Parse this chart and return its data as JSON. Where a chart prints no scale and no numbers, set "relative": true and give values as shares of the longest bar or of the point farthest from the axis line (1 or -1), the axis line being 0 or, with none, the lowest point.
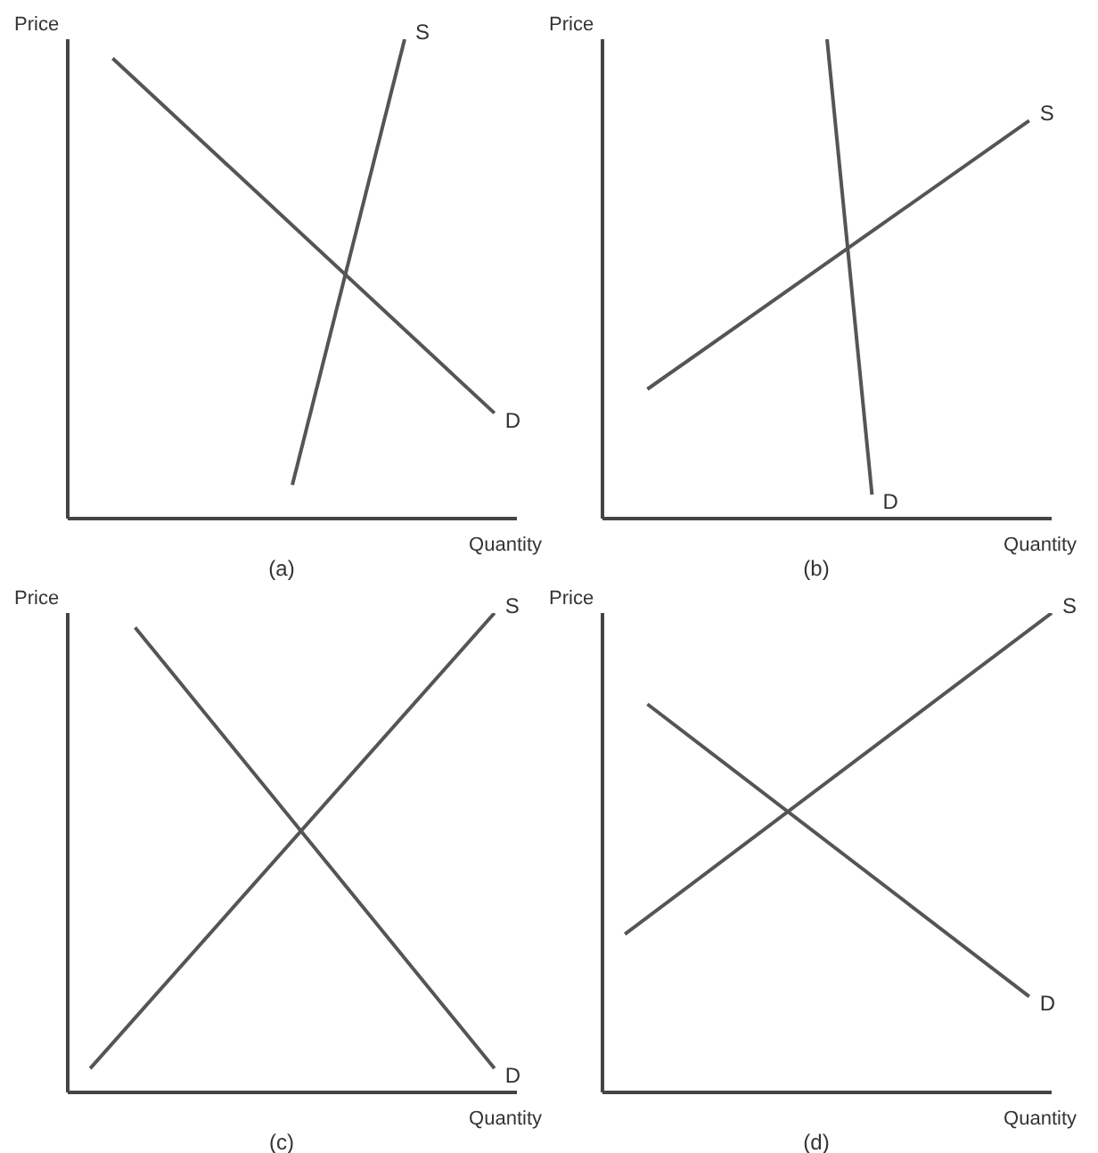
{
  "chart_data": [
    {
      "type": "line",
      "title": "(a)",
      "xlabel": "Quantity",
      "ylabel": "Price",
      "relative": true,
      "legend": false,
      "grid": false,
      "marker": "none",
      "categories": [
        null,
        null,
        null,
        null,
        null,
        null,
        null,
        null,
        null,
        null,
        null,
        null,
        null,
        null,
        null,
        null,
        null,
        null,
        null,
        null,
        null
      ],
      "series": [
        {
          "name": "D",
          "color": "#555555",
          "values": [
            null,
            null,
            0.96,
            null,
            null,
            null,
            null,
            null,
            null,
            null,
            null,
            null,
            null,
            null,
            null,
            null,
            null,
            null,
            null,
            0.22,
            null
          ]
        },
        {
          "name": "S",
          "color": "#555555",
          "values": [
            null,
            null,
            null,
            null,
            null,
            null,
            null,
            null,
            null,
            null,
            0.07,
            null,
            null,
            null,
            null,
            1,
            null,
            null,
            null,
            null,
            null
          ]
        }
      ]
    },
    {
      "type": "line",
      "title": "(b)",
      "xlabel": "Quantity",
      "ylabel": "Price",
      "relative": true,
      "legend": false,
      "grid": false,
      "marker": "none",
      "categories": [
        null,
        null,
        null,
        null,
        null,
        null,
        null,
        null,
        null,
        null,
        null,
        null,
        null,
        null,
        null,
        null,
        null,
        null,
        null,
        null,
        null
      ],
      "series": [
        {
          "name": "D",
          "color": "#555555",
          "values": [
            null,
            null,
            null,
            null,
            null,
            null,
            null,
            null,
            null,
            null,
            1,
            null,
            0.05,
            null,
            null,
            null,
            null,
            null,
            null,
            null,
            null
          ]
        },
        {
          "name": "S",
          "color": "#555555",
          "values": [
            null,
            null,
            0.27,
            null,
            null,
            null,
            null,
            null,
            null,
            null,
            null,
            null,
            null,
            null,
            null,
            null,
            null,
            null,
            null,
            0.83,
            null
          ]
        }
      ]
    },
    {
      "type": "line",
      "title": "(c)",
      "xlabel": "Quantity",
      "ylabel": "Price",
      "relative": true,
      "legend": false,
      "grid": false,
      "marker": "none",
      "categories": [
        null,
        null,
        null,
        null,
        null,
        null,
        null,
        null,
        null,
        null,
        null,
        null,
        null,
        null,
        null,
        null,
        null,
        null,
        null,
        null,
        null
      ],
      "series": [
        {
          "name": "S",
          "color": "#555555",
          "values": [
            null,
            0.05,
            null,
            null,
            null,
            null,
            null,
            null,
            null,
            null,
            null,
            null,
            null,
            null,
            null,
            null,
            null,
            null,
            null,
            1,
            null
          ]
        },
        {
          "name": "D",
          "color": "#555555",
          "values": [
            null,
            null,
            null,
            0.97,
            null,
            null,
            null,
            null,
            null,
            null,
            null,
            null,
            null,
            null,
            null,
            null,
            null,
            null,
            null,
            0.05,
            null
          ]
        }
      ]
    },
    {
      "type": "line",
      "title": "(d)",
      "xlabel": "Quantity",
      "ylabel": "Price",
      "relative": true,
      "legend": false,
      "grid": false,
      "marker": "none",
      "categories": [
        null,
        null,
        null,
        null,
        null,
        null,
        null,
        null,
        null,
        null,
        null,
        null,
        null,
        null,
        null,
        null,
        null,
        null,
        null,
        null,
        null
      ],
      "series": [
        {
          "name": "S",
          "color": "#555555",
          "values": [
            null,
            0.33,
            null,
            null,
            null,
            null,
            null,
            null,
            null,
            null,
            null,
            null,
            null,
            null,
            null,
            null,
            null,
            null,
            null,
            null,
            1
          ]
        },
        {
          "name": "D",
          "color": "#555555",
          "values": [
            null,
            null,
            0.81,
            null,
            null,
            null,
            null,
            null,
            null,
            null,
            null,
            null,
            null,
            null,
            null,
            null,
            null,
            null,
            null,
            0.2,
            null
          ]
        }
      ]
    }
  ]
}
